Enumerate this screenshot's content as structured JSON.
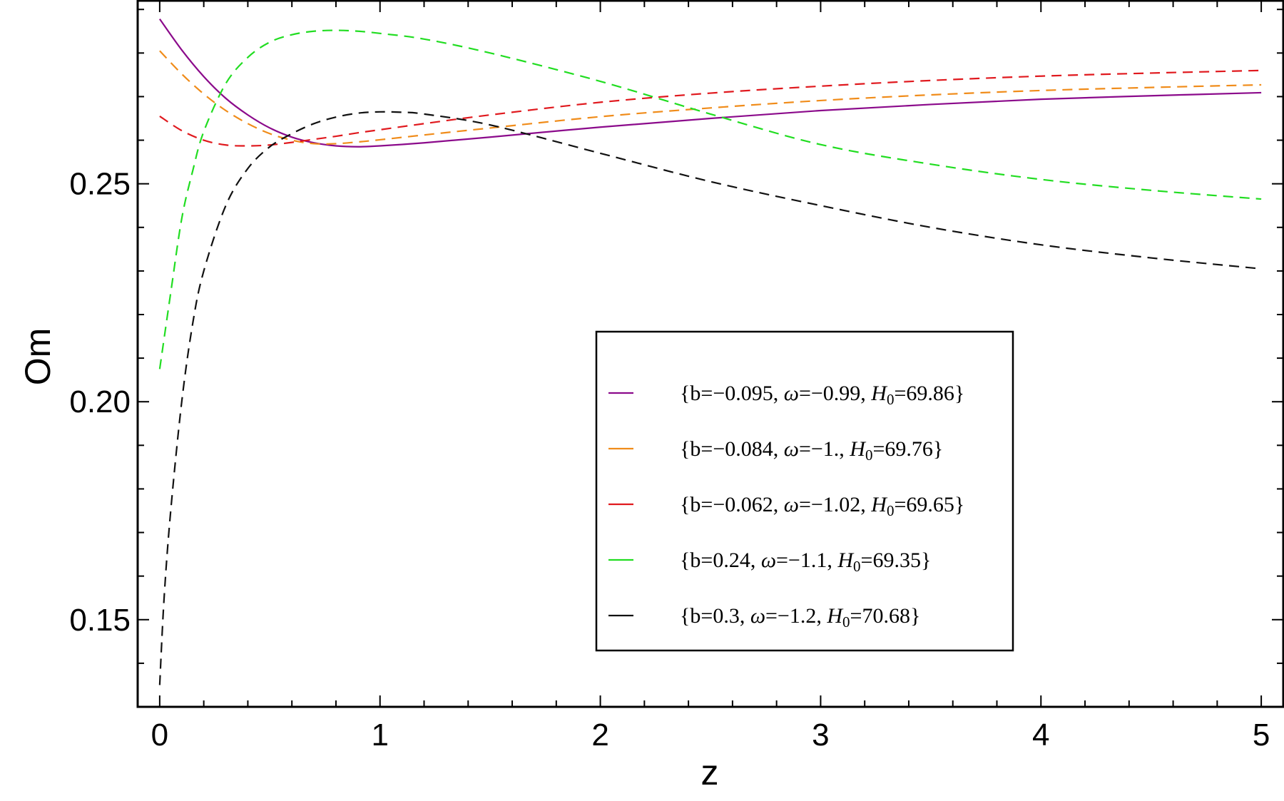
{
  "chart_data": {
    "type": "line",
    "title": "",
    "xlabel": "z",
    "ylabel": "Om",
    "xlim": [
      -0.1,
      5.1
    ],
    "ylim": [
      0.13,
      0.292
    ],
    "grid": false,
    "legend_position": "center-right",
    "x_ticks": [
      {
        "value": 0,
        "label": "0"
      },
      {
        "value": 1,
        "label": "1"
      },
      {
        "value": 2,
        "label": "2"
      },
      {
        "value": 3,
        "label": "3"
      },
      {
        "value": 4,
        "label": "4"
      },
      {
        "value": 5,
        "label": "5"
      }
    ],
    "y_ticks": [
      {
        "value": 0.15,
        "label": "0.15"
      },
      {
        "value": 0.2,
        "label": "0.20"
      },
      {
        "value": 0.25,
        "label": "0.25"
      }
    ],
    "series": [
      {
        "name": "{b=−0.095, ω=−0.99, H0=69.86}",
        "legend": {
          "b": "−0.095",
          "w": "−0.99",
          "H0": "69.86"
        },
        "color": "#8b0a8b",
        "dash": "solid",
        "x": [
          0,
          0.1,
          0.2,
          0.3,
          0.4,
          0.5,
          0.6,
          0.7,
          0.8,
          0.9,
          1.0,
          1.2,
          1.5,
          2.0,
          2.5,
          3.0,
          3.5,
          4.0,
          4.5,
          5.0
        ],
        "y": [
          0.2878,
          0.2807,
          0.2746,
          0.2696,
          0.2658,
          0.2628,
          0.2607,
          0.2594,
          0.2587,
          0.2585,
          0.2587,
          0.2594,
          0.2607,
          0.263,
          0.265,
          0.2668,
          0.2682,
          0.2694,
          0.2702,
          0.2709
        ]
      },
      {
        "name": "{b=−0.084, ω=−1., H0=69.76}",
        "legend": {
          "b": "−0.084",
          "w": "−1.",
          "H0": "69.76"
        },
        "color": "#f08c1a",
        "dash": "dashed",
        "x": [
          0,
          0.1,
          0.2,
          0.3,
          0.4,
          0.5,
          0.6,
          0.7,
          0.8,
          0.9,
          1.0,
          1.2,
          1.5,
          2.0,
          2.5,
          3.0,
          3.5,
          4.0,
          4.5,
          5.0
        ],
        "y": [
          0.2805,
          0.2752,
          0.2706,
          0.2668,
          0.2638,
          0.2615,
          0.26,
          0.2592,
          0.2592,
          0.2596,
          0.2601,
          0.2612,
          0.2628,
          0.2654,
          0.2674,
          0.2691,
          0.2704,
          0.2714,
          0.2721,
          0.2727
        ]
      },
      {
        "name": "{b=−0.062, ω=−1.02, H0=69.65}",
        "legend": {
          "b": "−0.062",
          "w": "−1.02",
          "H0": "69.65"
        },
        "color": "#e0191e",
        "dash": "dashed",
        "x": [
          0,
          0.1,
          0.2,
          0.3,
          0.4,
          0.5,
          0.6,
          0.7,
          0.8,
          0.9,
          1.0,
          1.2,
          1.5,
          2.0,
          2.5,
          3.0,
          3.5,
          4.0,
          4.5,
          5.0
        ],
        "y": [
          0.2655,
          0.2622,
          0.26,
          0.2589,
          0.2587,
          0.2589,
          0.2595,
          0.2602,
          0.2609,
          0.2617,
          0.2624,
          0.2638,
          0.2658,
          0.2687,
          0.2708,
          0.2724,
          0.2737,
          0.2747,
          0.2754,
          0.276
        ]
      },
      {
        "name": "{b=0.24, ω=−1.1, H0=69.35}",
        "legend": {
          "b": "0.24",
          "w": "−1.1",
          "H0": "69.35"
        },
        "color": "#21dd21",
        "dash": "dashed",
        "x": [
          0,
          0.05,
          0.1,
          0.15,
          0.2,
          0.3,
          0.4,
          0.5,
          0.6,
          0.7,
          0.8,
          0.9,
          1.0,
          1.2,
          1.5,
          2.0,
          2.5,
          3.0,
          3.5,
          4.0,
          4.5,
          5.0
        ],
        "y": [
          0.2075,
          0.225,
          0.242,
          0.253,
          0.262,
          0.273,
          0.279,
          0.2825,
          0.2842,
          0.285,
          0.2852,
          0.285,
          0.2845,
          0.2832,
          0.28,
          0.2735,
          0.266,
          0.259,
          0.2545,
          0.251,
          0.2485,
          0.2465
        ]
      },
      {
        "name": "{b=0.3, ω=−1.2, H0=70.68}",
        "legend": {
          "b": "0.3",
          "w": "−1.2",
          "H0": "70.68"
        },
        "color": "#111111",
        "dash": "dashed",
        "x": [
          0,
          0.02,
          0.05,
          0.1,
          0.15,
          0.2,
          0.3,
          0.4,
          0.5,
          0.6,
          0.7,
          0.8,
          0.9,
          1.0,
          1.1,
          1.2,
          1.5,
          2.0,
          2.5,
          3.0,
          3.5,
          4.0,
          4.5,
          5.0
        ],
        "y": [
          0.135,
          0.155,
          0.175,
          0.2,
          0.218,
          0.23,
          0.245,
          0.2535,
          0.2585,
          0.2615,
          0.2638,
          0.2653,
          0.2662,
          0.2665,
          0.2664,
          0.266,
          0.2635,
          0.257,
          0.2505,
          0.245,
          0.24,
          0.236,
          0.233,
          0.2305
        ]
      }
    ]
  }
}
